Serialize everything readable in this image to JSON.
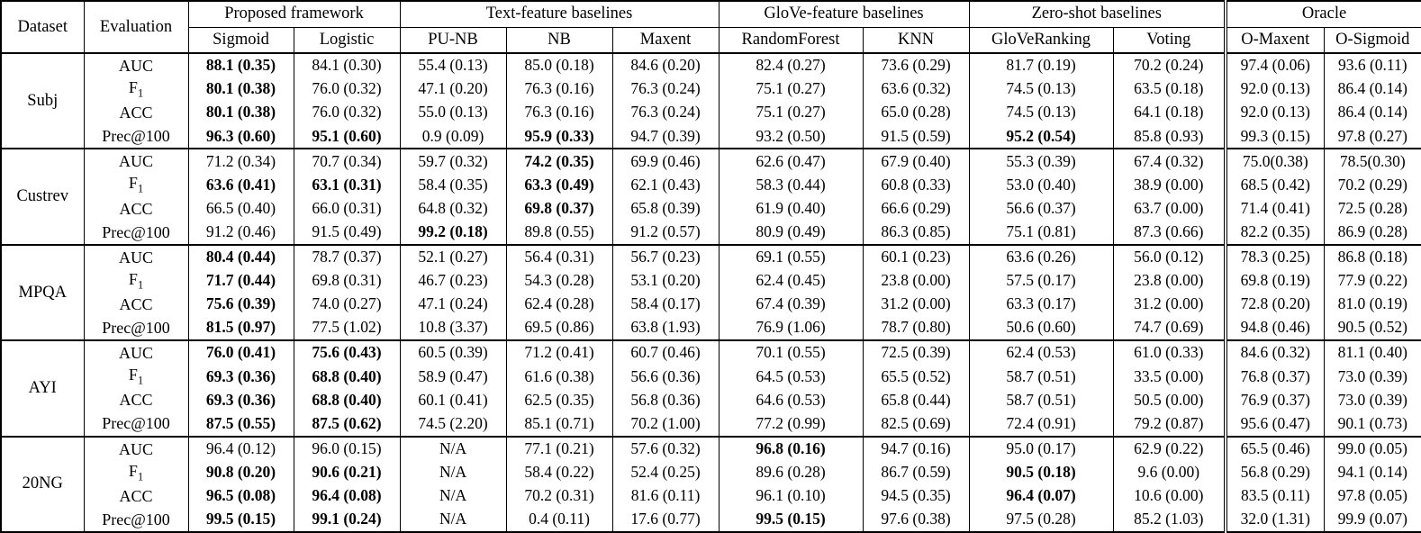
{
  "table": {
    "corner_headers": [
      "Dataset",
      "Evaluation"
    ],
    "groups": [
      {
        "label": "Proposed framework",
        "cols": [
          "Sigmoid",
          "Logistic"
        ]
      },
      {
        "label": "Text-feature baselines",
        "cols": [
          "PU-NB",
          "NB",
          "Maxent"
        ]
      },
      {
        "label": "GloVe-feature baselines",
        "cols": [
          "RandomForest",
          "KNN"
        ]
      },
      {
        "label": "Zero-shot baselines",
        "cols": [
          "GloVeRanking",
          "Voting"
        ]
      },
      {
        "label": "Oracle",
        "cols": [
          "O-Maxent",
          "O-Sigmoid"
        ],
        "double_rule_before": true
      }
    ],
    "datasets": [
      {
        "name": "Subj",
        "rows": [
          {
            "metric": "AUC",
            "values": [
              "88.1 (0.35)",
              "84.1 (0.30)",
              "55.4 (0.13)",
              "85.0 (0.18)",
              "84.6 (0.20)",
              "82.4 (0.27)",
              "73.6 (0.29)",
              "81.7 (0.19)",
              "70.2 (0.24)",
              "97.4 (0.06)",
              "93.6 (0.11)"
            ],
            "bold": [
              0
            ]
          },
          {
            "metric": "F1",
            "values": [
              "80.1 (0.38)",
              "76.0 (0.32)",
              "47.1 (0.20)",
              "76.3 (0.16)",
              "76.3 (0.24)",
              "75.1 (0.27)",
              "63.6 (0.32)",
              "74.5 (0.13)",
              "63.5 (0.18)",
              "92.0 (0.13)",
              "86.4 (0.14)"
            ],
            "bold": [
              0
            ]
          },
          {
            "metric": "ACC",
            "values": [
              "80.1 (0.38)",
              "76.0 (0.32)",
              "55.0 (0.13)",
              "76.3 (0.16)",
              "76.3 (0.24)",
              "75.1 (0.27)",
              "65.0 (0.28)",
              "74.5 (0.13)",
              "64.1 (0.18)",
              "92.0 (0.13)",
              "86.4 (0.14)"
            ],
            "bold": [
              0
            ]
          },
          {
            "metric": "Prec@100",
            "values": [
              "96.3 (0.60)",
              "95.1 (0.60)",
              "0.9 (0.09)",
              "95.9 (0.33)",
              "94.7 (0.39)",
              "93.2 (0.50)",
              "91.5 (0.59)",
              "95.2 (0.54)",
              "85.8 (0.93)",
              "99.3 (0.15)",
              "97.8 (0.27)"
            ],
            "bold": [
              0,
              1,
              3,
              7
            ]
          }
        ]
      },
      {
        "name": "Custrev",
        "rows": [
          {
            "metric": "AUC",
            "values": [
              "71.2 (0.34)",
              "70.7 (0.34)",
              "59.7 (0.32)",
              "74.2 (0.35)",
              "69.9 (0.46)",
              "62.6 (0.47)",
              "67.9 (0.40)",
              "55.3 (0.39)",
              "67.4 (0.32)",
              "75.0(0.38)",
              "78.5(0.30)"
            ],
            "bold": [
              3
            ]
          },
          {
            "metric": "F1",
            "values": [
              "63.6 (0.41)",
              "63.1 (0.31)",
              "58.4 (0.35)",
              "63.3 (0.49)",
              "62.1 (0.43)",
              "58.3 (0.44)",
              "60.8 (0.33)",
              "53.0 (0.40)",
              "38.9 (0.00)",
              "68.5 (0.42)",
              "70.2 (0.29)"
            ],
            "bold": [
              0,
              1,
              3
            ]
          },
          {
            "metric": "ACC",
            "values": [
              "66.5 (0.40)",
              "66.0 (0.31)",
              "64.8 (0.32)",
              "69.8 (0.37)",
              "65.8 (0.39)",
              "61.9 (0.40)",
              "66.6 (0.29)",
              "56.6 (0.37)",
              "63.7 (0.00)",
              "71.4 (0.41)",
              "72.5 (0.28)"
            ],
            "bold": [
              3
            ]
          },
          {
            "metric": "Prec@100",
            "values": [
              "91.2 (0.46)",
              "91.5 (0.49)",
              "99.2 (0.18)",
              "89.8 (0.55)",
              "91.2 (0.57)",
              "80.9 (0.49)",
              "86.3 (0.85)",
              "75.1 (0.81)",
              "87.3 (0.66)",
              "82.2 (0.35)",
              "86.9 (0.28)"
            ],
            "bold": [
              2
            ]
          }
        ]
      },
      {
        "name": "MPQA",
        "rows": [
          {
            "metric": "AUC",
            "values": [
              "80.4 (0.44)",
              "78.7 (0.37)",
              "52.1 (0.27)",
              "56.4 (0.31)",
              "56.7 (0.23)",
              "69.1 (0.55)",
              "60.1 (0.23)",
              "63.6 (0.26)",
              "56.0 (0.12)",
              "78.3 (0.25)",
              "86.8 (0.18)"
            ],
            "bold": [
              0
            ]
          },
          {
            "metric": "F1",
            "values": [
              "71.7 (0.44)",
              "69.8 (0.31)",
              "46.7 (0.23)",
              "54.3 (0.28)",
              "53.1 (0.20)",
              "62.4 (0.45)",
              "23.8 (0.00)",
              "57.5 (0.17)",
              "23.8 (0.00)",
              "69.8 (0.19)",
              "77.9 (0.22)"
            ],
            "bold": [
              0
            ]
          },
          {
            "metric": "ACC",
            "values": [
              "75.6 (0.39)",
              "74.0 (0.27)",
              "47.1 (0.24)",
              "62.4 (0.28)",
              "58.4 (0.17)",
              "67.4 (0.39)",
              "31.2 (0.00)",
              "63.3 (0.17)",
              "31.2 (0.00)",
              "72.8 (0.20)",
              "81.0 (0.19)"
            ],
            "bold": [
              0
            ]
          },
          {
            "metric": "Prec@100",
            "values": [
              "81.5 (0.97)",
              "77.5 (1.02)",
              "10.8 (3.37)",
              "69.5 (0.86)",
              "63.8 (1.93)",
              "76.9 (1.06)",
              "78.7 (0.80)",
              "50.6 (0.60)",
              "74.7 (0.69)",
              "94.8 (0.46)",
              "90.5 (0.52)"
            ],
            "bold": [
              0
            ]
          }
        ]
      },
      {
        "name": "AYI",
        "rows": [
          {
            "metric": "AUC",
            "values": [
              "76.0 (0.41)",
              "75.6 (0.43)",
              "60.5 (0.39)",
              "71.2 (0.41)",
              "60.7 (0.46)",
              "70.1 (0.55)",
              "72.5 (0.39)",
              "62.4 (0.53)",
              "61.0 (0.33)",
              "84.6 (0.32)",
              "81.1 (0.40)"
            ],
            "bold": [
              0,
              1
            ]
          },
          {
            "metric": "F1",
            "values": [
              "69.3 (0.36)",
              "68.8 (0.40)",
              "58.9 (0.47)",
              "61.6 (0.38)",
              "56.6 (0.36)",
              "64.5 (0.53)",
              "65.5 (0.52)",
              "58.7 (0.51)",
              "33.5 (0.00)",
              "76.8 (0.37)",
              "73.0 (0.39)"
            ],
            "bold": [
              0,
              1
            ]
          },
          {
            "metric": "ACC",
            "values": [
              "69.3 (0.36)",
              "68.8 (0.40)",
              "60.1 (0.41)",
              "62.5 (0.35)",
              "56.8 (0.36)",
              "64.6 (0.53)",
              "65.8 (0.44)",
              "58.7 (0.51)",
              "50.5 (0.00)",
              "76.9 (0.37)",
              "73.0 (0.39)"
            ],
            "bold": [
              0,
              1
            ]
          },
          {
            "metric": "Prec@100",
            "values": [
              "87.5 (0.55)",
              "87.5 (0.62)",
              "74.5 (2.20)",
              "85.1 (0.71)",
              "70.2 (1.00)",
              "77.2 (0.99)",
              "82.5 (0.69)",
              "72.4 (0.91)",
              "79.2 (0.87)",
              "95.6 (0.47)",
              "90.1 (0.73)"
            ],
            "bold": [
              0,
              1
            ]
          }
        ]
      },
      {
        "name": "20NG",
        "rows": [
          {
            "metric": "AUC",
            "values": [
              "96.4 (0.12)",
              "96.0 (0.15)",
              "N/A",
              "77.1 (0.21)",
              "57.6 (0.32)",
              "96.8 (0.16)",
              "94.7 (0.16)",
              "95.0 (0.17)",
              "62.9 (0.22)",
              "65.5 (0.46)",
              "99.0 (0.05)"
            ],
            "bold": [
              5
            ]
          },
          {
            "metric": "F1",
            "values": [
              "90.8 (0.20)",
              "90.6 (0.21)",
              "N/A",
              "58.4 (0.22)",
              "52.4 (0.25)",
              "89.6 (0.28)",
              "86.7 (0.59)",
              "90.5 (0.18)",
              "9.6 (0.00)",
              "56.8 (0.29)",
              "94.1 (0.14)"
            ],
            "bold": [
              0,
              1,
              7
            ]
          },
          {
            "metric": "ACC",
            "values": [
              "96.5 (0.08)",
              "96.4 (0.08)",
              "N/A",
              "70.2 (0.31)",
              "81.6 (0.11)",
              "96.1 (0.10)",
              "94.5 (0.35)",
              "96.4 (0.07)",
              "10.6 (0.00)",
              "83.5 (0.11)",
              "97.8 (0.05)"
            ],
            "bold": [
              0,
              1,
              7
            ]
          },
          {
            "metric": "Prec@100",
            "values": [
              "99.5 (0.15)",
              "99.1 (0.24)",
              "N/A",
              "0.4 (0.11)",
              "17.6 (0.77)",
              "99.5 (0.15)",
              "97.6 (0.38)",
              "97.5 (0.28)",
              "85.2 (1.03)",
              "32.0 (1.31)",
              "99.9 (0.07)"
            ],
            "bold": [
              0,
              1,
              5
            ]
          }
        ]
      }
    ]
  }
}
